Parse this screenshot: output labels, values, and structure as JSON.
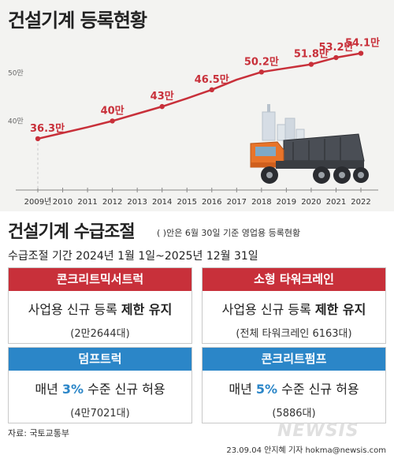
{
  "header": {
    "title": "건설기계 등록현황"
  },
  "chart_data": {
    "type": "line",
    "x": [
      "2009년",
      "2010",
      "2011",
      "2012",
      "2013",
      "2014",
      "2015",
      "2016",
      "2017",
      "2018",
      "2019",
      "2020",
      "2021",
      "2022"
    ],
    "values": [
      36.3,
      37.5,
      38.7,
      40,
      41.5,
      43,
      44.7,
      46.5,
      48.6,
      50.2,
      51,
      51.8,
      53.2,
      54.1
    ],
    "labeled": [
      {
        "index": 0,
        "text": "36.3만"
      },
      {
        "index": 3,
        "text": "40만"
      },
      {
        "index": 5,
        "text": "43만"
      },
      {
        "index": 7,
        "text": "46.5만"
      },
      {
        "index": 9,
        "text": "50.2만"
      },
      {
        "index": 11,
        "text": "51.8만"
      },
      {
        "index": 12,
        "text": "53.2만"
      },
      {
        "index": 13,
        "text": "54.1만"
      }
    ],
    "y_ticks": [
      {
        "value": 40,
        "label": "40만"
      },
      {
        "value": 50,
        "label": "50만"
      }
    ],
    "ylim": [
      33,
      56
    ],
    "title": "건설기계 등록현황",
    "xlabel": "",
    "ylabel": "",
    "grid": false,
    "colors": {
      "line": "#c8303a",
      "label": "#c8303a",
      "axis": "#888888"
    }
  },
  "section": {
    "title": "건설기계 수급조절",
    "note": "( )안은  6월 30일 기준 영업용 등록현황",
    "period": "수급조절 기간 2024년 1월 1일~2025년 12월 31일"
  },
  "cards": [
    {
      "header": "콘크리트믹서트럭",
      "main_pre": "사업용 신규 등록 ",
      "main_bold": "제한 유지",
      "main_post": "",
      "sub": "(2만2644대)"
    },
    {
      "header": "소형 타워크레인",
      "main_pre": "사업용 신규 등록 ",
      "main_bold": "제한 유지",
      "main_post": "",
      "sub": "(전체 타워크레인 6163대)"
    },
    {
      "header": "덤프트럭",
      "main_pre": "매년 ",
      "main_bold": "3%",
      "main_post": " 수준 신규 허용",
      "sub": "(4만7021대)"
    },
    {
      "header": "콘크리트펌프",
      "main_pre": "매년 ",
      "main_bold": "5%",
      "main_post": " 수준 신규 허용",
      "sub": "(5886대)"
    }
  ],
  "footer": {
    "source": "자료: 국토교통부",
    "credit": "23.09.04 안지혜 기자  hokma@newsis.com",
    "logo": "NEWSIS"
  }
}
